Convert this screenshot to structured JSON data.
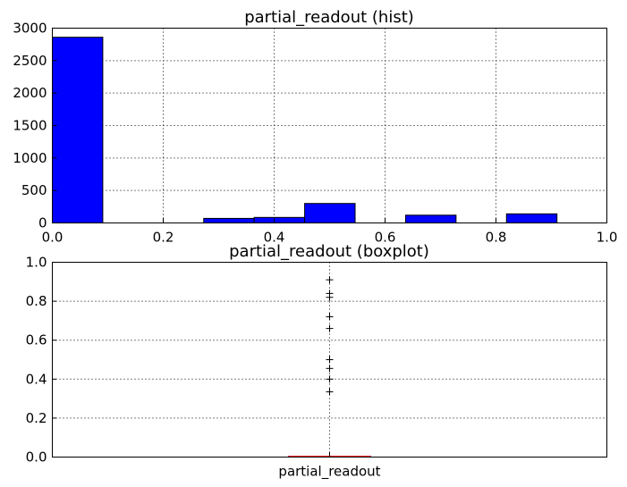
{
  "colors": {
    "bar_fill": "#0000ff",
    "flier": "#000000",
    "median": "#ff0000",
    "box": "#0000ff"
  },
  "chart_data": [
    {
      "type": "bar",
      "title": "partial_readout (hist)",
      "xlabel": "",
      "ylabel": "",
      "xlim": [
        0.0,
        1.0
      ],
      "ylim": [
        0,
        3000
      ],
      "xticks": [
        "0.0",
        "0.2",
        "0.4",
        "0.6",
        "0.8",
        "1.0"
      ],
      "yticks": [
        "0",
        "500",
        "1000",
        "1500",
        "2000",
        "2500",
        "3000"
      ],
      "bins": [
        {
          "x0": 0.0,
          "x1": 0.091,
          "value": 2860
        },
        {
          "x0": 0.091,
          "x1": 0.182,
          "value": 0
        },
        {
          "x0": 0.182,
          "x1": 0.273,
          "value": 0
        },
        {
          "x0": 0.273,
          "x1": 0.364,
          "value": 70
        },
        {
          "x0": 0.364,
          "x1": 0.455,
          "value": 85
        },
        {
          "x0": 0.455,
          "x1": 0.546,
          "value": 300
        },
        {
          "x0": 0.546,
          "x1": 0.637,
          "value": 0
        },
        {
          "x0": 0.637,
          "x1": 0.728,
          "value": 120
        },
        {
          "x0": 0.728,
          "x1": 0.819,
          "value": 0
        },
        {
          "x0": 0.819,
          "x1": 0.91,
          "value": 140
        }
      ],
      "grid": true
    },
    {
      "type": "boxplot",
      "title": "partial_readout (boxplot)",
      "categories": [
        "partial_readout"
      ],
      "ylim": [
        0.0,
        1.0
      ],
      "yticks": [
        "0.0",
        "0.2",
        "0.4",
        "0.6",
        "0.8",
        "1.0"
      ],
      "box": {
        "q1": 0.0,
        "median": 0.0,
        "q3": 0.0,
        "whisker_low": 0.0,
        "whisker_high": 0.0
      },
      "fliers": [
        0.91,
        0.84,
        0.82,
        0.72,
        0.66,
        0.5,
        0.455,
        0.4,
        0.335
      ],
      "grid": true
    }
  ]
}
